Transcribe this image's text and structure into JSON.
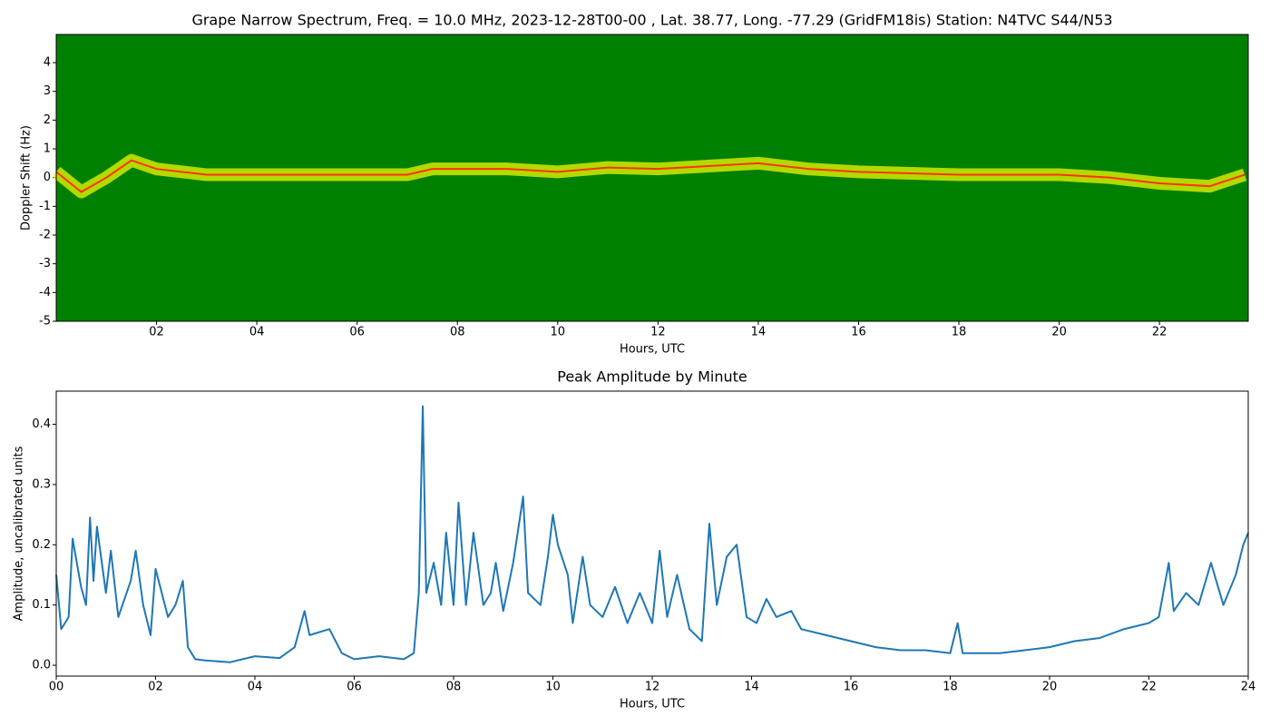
{
  "chart_data": [
    {
      "type": "spectrogram",
      "title": "Grape Narrow Spectrum, Freq. = 10.0 MHz, 2023-12-28T00-00 , Lat.  38.77, Long. -77.29 (GridFM18is) Station: N4TVC S44/N53",
      "xlabel": "Hours, UTC",
      "ylabel": "Doppler Shift (Hz)",
      "background": "#008000",
      "color": "#ffff00",
      "x": [
        0,
        0.5,
        1,
        1.5,
        2,
        2.5,
        3,
        4,
        5,
        6,
        7,
        7.5,
        8,
        9,
        10,
        11,
        12,
        13,
        14,
        15,
        16,
        18,
        20,
        21,
        22,
        23,
        23.7
      ],
      "values": [
        0.2,
        -0.5,
        0,
        0.6,
        0.3,
        0.2,
        0.1,
        0.1,
        0.1,
        0.1,
        0.1,
        0.3,
        0.3,
        0.3,
        0.2,
        0.35,
        0.3,
        0.4,
        0.5,
        0.3,
        0.2,
        0.1,
        0.1,
        0,
        -0.2,
        -0.3,
        0.1
      ],
      "xlim": [
        0,
        23.77
      ],
      "ylim": [
        -5,
        4.98
      ],
      "xticks": [
        {
          "value": 2,
          "label": "02"
        },
        {
          "value": 4,
          "label": "04"
        },
        {
          "value": 6,
          "label": "06"
        },
        {
          "value": 8,
          "label": "08"
        },
        10,
        12,
        14,
        16,
        18,
        20,
        22
      ],
      "yticks": [
        -5,
        -4,
        -3,
        -2,
        -1,
        0,
        1,
        2,
        3,
        4
      ]
    },
    {
      "type": "line",
      "title": "Peak Amplitude by Minute",
      "xlabel": "Hours, UTC",
      "ylabel": "Amplitude, uncalibrated units",
      "color": "#1f77b4",
      "x": [
        0,
        0.1,
        0.25,
        0.33,
        0.5,
        0.6,
        0.68,
        0.75,
        0.82,
        1.0,
        1.1,
        1.25,
        1.5,
        1.6,
        1.75,
        1.9,
        2.0,
        2.25,
        2.4,
        2.55,
        2.65,
        2.8,
        3,
        3.5,
        4,
        4.5,
        4.8,
        5.0,
        5.1,
        5.5,
        5.75,
        6,
        6.5,
        7,
        7.2,
        7.3,
        7.38,
        7.45,
        7.6,
        7.75,
        7.85,
        8,
        8.1,
        8.25,
        8.4,
        8.6,
        8.75,
        8.85,
        9,
        9.2,
        9.4,
        9.5,
        9.75,
        9.9,
        10.0,
        10.1,
        10.3,
        10.4,
        10.6,
        10.75,
        11,
        11.25,
        11.5,
        11.75,
        12,
        12.15,
        12.3,
        12.5,
        12.75,
        13,
        13.15,
        13.3,
        13.5,
        13.7,
        13.9,
        14.1,
        14.3,
        14.5,
        14.8,
        15,
        15.5,
        16,
        16.5,
        17,
        17.5,
        18,
        18.15,
        18.25,
        18.5,
        19,
        19.5,
        20,
        20.5,
        21,
        21.5,
        22,
        22.2,
        22.4,
        22.5,
        22.75,
        23,
        23.25,
        23.5,
        23.75,
        23.9,
        24
      ],
      "values": [
        0.15,
        0.06,
        0.08,
        0.21,
        0.13,
        0.1,
        0.245,
        0.14,
        0.23,
        0.12,
        0.19,
        0.08,
        0.14,
        0.19,
        0.1,
        0.05,
        0.16,
        0.08,
        0.1,
        0.14,
        0.03,
        0.01,
        0.008,
        0.005,
        0.015,
        0.012,
        0.03,
        0.09,
        0.05,
        0.06,
        0.02,
        0.01,
        0.015,
        0.01,
        0.02,
        0.12,
        0.43,
        0.12,
        0.17,
        0.1,
        0.22,
        0.1,
        0.27,
        0.1,
        0.22,
        0.1,
        0.12,
        0.17,
        0.09,
        0.17,
        0.28,
        0.12,
        0.1,
        0.18,
        0.25,
        0.2,
        0.15,
        0.07,
        0.18,
        0.1,
        0.08,
        0.13,
        0.07,
        0.12,
        0.07,
        0.19,
        0.08,
        0.15,
        0.06,
        0.04,
        0.235,
        0.1,
        0.18,
        0.2,
        0.08,
        0.07,
        0.11,
        0.08,
        0.09,
        0.06,
        0.05,
        0.04,
        0.03,
        0.025,
        0.025,
        0.02,
        0.07,
        0.02,
        0.02,
        0.02,
        0.025,
        0.03,
        0.04,
        0.045,
        0.06,
        0.07,
        0.08,
        0.17,
        0.09,
        0.12,
        0.1,
        0.17,
        0.1,
        0.15,
        0.2,
        0.22
      ],
      "xlim": [
        0,
        24
      ],
      "ylim": [
        -0.018,
        0.455
      ],
      "xticks": [
        {
          "value": 0,
          "label": "00"
        },
        {
          "value": 2,
          "label": "02"
        },
        {
          "value": 4,
          "label": "04"
        },
        {
          "value": 6,
          "label": "06"
        },
        {
          "value": 8,
          "label": "08"
        },
        10,
        12,
        14,
        16,
        18,
        20,
        22,
        24
      ],
      "yticks": [
        {
          "value": 0,
          "label": "0.0"
        },
        0.1,
        0.2,
        0.3,
        0.4
      ]
    }
  ]
}
